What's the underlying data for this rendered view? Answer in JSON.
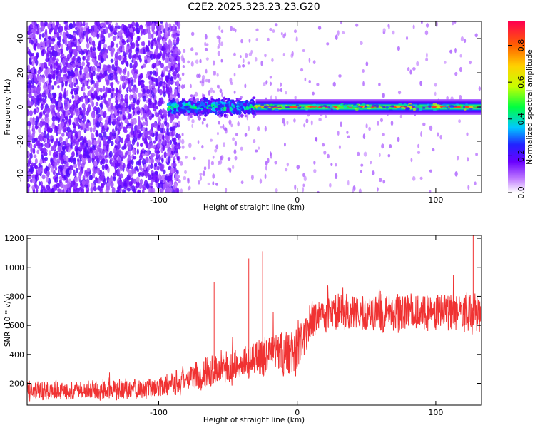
{
  "title": "C2E2.2025.323.23.23.G20",
  "chart_data": [
    {
      "type": "heatmap",
      "name": "spectrogram",
      "xlabel": "Height of straight line (km)",
      "ylabel": "Frequency (Hz)",
      "xlim": [
        -195,
        133
      ],
      "ylim": [
        -50,
        50
      ],
      "x_ticks": [
        -100,
        0,
        100
      ],
      "y_ticks": [
        -40,
        -20,
        0,
        20,
        40
      ],
      "colorbar": {
        "label": "Normalized spectral amplitude",
        "range": [
          0.0,
          0.93
        ],
        "ticks": [
          0.0,
          0.2,
          0.4,
          0.6,
          0.8
        ]
      },
      "regions": [
        {
          "x_from": -195,
          "x_to": -93,
          "description_level": 0.15
        },
        {
          "x_from": -93,
          "x_to": -30,
          "center_freq": 0,
          "spread_hz": 8,
          "peak": 0.55
        },
        {
          "x_from": -30,
          "x_to": 133,
          "center_freq": 0,
          "spread_hz": 3,
          "peak": 0.93
        }
      ]
    },
    {
      "type": "line",
      "name": "snr",
      "xlabel": "Height of straight line (km)",
      "ylabel": "SNR (10 * v/v)",
      "xlim": [
        -195,
        133
      ],
      "ylim": [
        50,
        1220
      ],
      "x_ticks": [
        -100,
        0,
        100
      ],
      "y_ticks": [
        200,
        400,
        600,
        800,
        1000,
        1200
      ],
      "color": "#f03232",
      "trend": {
        "x": [
          -195,
          -150,
          -100,
          -80,
          -60,
          -40,
          -20,
          0,
          10,
          20,
          50,
          80,
          110,
          133
        ],
        "mean": [
          150,
          150,
          170,
          230,
          300,
          330,
          390,
          430,
          620,
          680,
          680,
          690,
          700,
          700
        ],
        "spread": [
          120,
          120,
          130,
          180,
          220,
          220,
          260,
          300,
          260,
          230,
          230,
          240,
          250,
          250
        ]
      },
      "spikes": [
        {
          "x": -60,
          "value": 900
        },
        {
          "x": -35,
          "value": 1060
        },
        {
          "x": -25,
          "value": 1110
        },
        {
          "x": 127,
          "value": 1220
        }
      ]
    }
  ]
}
